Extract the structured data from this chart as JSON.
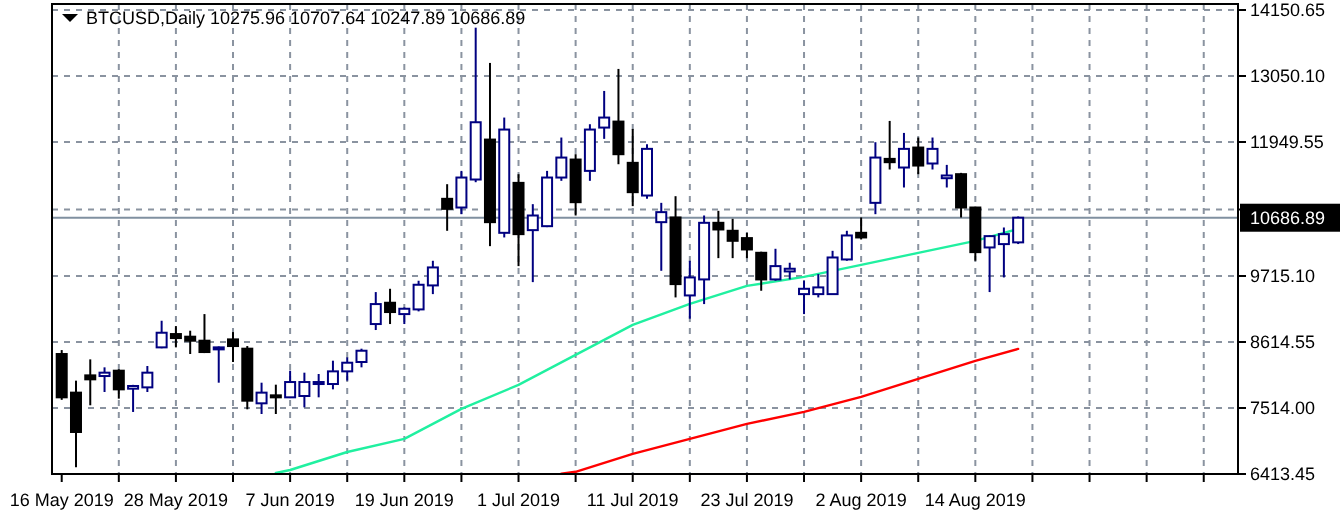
{
  "chart_data": {
    "type": "candlestick",
    "title": "BTCUSD,Daily 10275.96 10707.64 10247.89 10686.89",
    "categories": [
      "16 May 2019",
      null,
      null,
      null,
      null,
      null,
      null,
      null,
      "28 May 2019",
      null,
      null,
      null,
      null,
      null,
      null,
      null,
      "7 Jun 2019",
      null,
      null,
      null,
      null,
      null,
      null,
      null,
      "19 Jun 2019",
      null,
      null,
      null,
      null,
      null,
      null,
      null,
      "1 Jul 2019",
      null,
      null,
      null,
      null,
      null,
      null,
      null,
      "11 Jul 2019",
      null,
      null,
      null,
      null,
      null,
      null,
      null,
      "23 Jul 2019",
      null,
      null,
      null,
      null,
      null,
      null,
      null,
      "2 Aug 2019",
      null,
      null,
      null,
      null,
      null,
      null,
      null,
      "14 Aug 2019",
      null,
      null,
      null,
      null,
      null,
      null,
      null,
      null,
      null,
      null,
      null,
      null,
      null,
      null,
      null,
      null,
      null,
      null
    ],
    "ohlc": [
      [
        8414,
        8480,
        7650,
        7692
      ],
      [
        7770,
        7970,
        6526,
        7114
      ],
      [
        8058,
        8325,
        7559,
        7992
      ],
      [
        8047,
        8192,
        7781,
        8103
      ],
      [
        8136,
        8160,
        7670,
        7825
      ],
      [
        7836,
        7900,
        7448,
        7881
      ],
      [
        7858,
        8214,
        7781,
        8103
      ],
      [
        8525,
        8969,
        8510,
        8769
      ],
      [
        8747,
        8880,
        8525,
        8680
      ],
      [
        8703,
        8803,
        8414,
        8636
      ],
      [
        8636,
        9080,
        8430,
        8447
      ],
      [
        8492,
        8540,
        7936,
        8525
      ],
      [
        8658,
        8780,
        8281,
        8547
      ],
      [
        8503,
        8547,
        7492,
        7636
      ],
      [
        7592,
        7936,
        7414,
        7770
      ],
      [
        7725,
        7903,
        7414,
        7692
      ],
      [
        7692,
        8136,
        7680,
        7947
      ],
      [
        7714,
        8103,
        7525,
        7947
      ],
      [
        7914,
        8081,
        7692,
        7947
      ],
      [
        7914,
        8303,
        7825,
        8125
      ],
      [
        8125,
        8358,
        7970,
        8269
      ],
      [
        8281,
        8503,
        8192,
        8469
      ],
      [
        8914,
        9447,
        8814,
        9247
      ],
      [
        9269,
        9502,
        8914,
        9114
      ],
      [
        9080,
        9191,
        8914,
        9169
      ],
      [
        9158,
        9636,
        9125,
        9569
      ],
      [
        9558,
        9969,
        9413,
        9858
      ],
      [
        11002,
        11246,
        10469,
        10835
      ],
      [
        10857,
        11468,
        10746,
        11357
      ],
      [
        11324,
        13856,
        11279,
        12279
      ],
      [
        11990,
        13268,
        10213,
        10613
      ],
      [
        10435,
        12357,
        10358,
        12157
      ],
      [
        11268,
        11413,
        9880,
        10413
      ],
      [
        10480,
        10913,
        9613,
        10724
      ],
      [
        10546,
        11468,
        10530,
        11357
      ],
      [
        11357,
        12024,
        11302,
        11690
      ],
      [
        11657,
        11746,
        10724,
        10946
      ],
      [
        11468,
        12246,
        11302,
        12157
      ],
      [
        12190,
        12801,
        12002,
        12357
      ],
      [
        12290,
        13168,
        11579,
        11746
      ],
      [
        11602,
        12168,
        10880,
        11113
      ],
      [
        11057,
        11913,
        11002,
        11835
      ],
      [
        10613,
        10935,
        9802,
        10780
      ],
      [
        10691,
        11046,
        9358,
        9580
      ],
      [
        9391,
        9969,
        9003,
        9691
      ],
      [
        9658,
        10724,
        9247,
        10602
      ],
      [
        10602,
        10802,
        10013,
        10491
      ],
      [
        10469,
        10669,
        10013,
        10302
      ],
      [
        10347,
        10435,
        10013,
        10158
      ],
      [
        10102,
        10120,
        9469,
        9658
      ],
      [
        9658,
        10169,
        9636,
        9880
      ],
      [
        9791,
        9936,
        9658,
        9836
      ],
      [
        9413,
        9636,
        9080,
        9502
      ],
      [
        9413,
        9747,
        9358,
        9525
      ],
      [
        9413,
        10135,
        9400,
        10024
      ],
      [
        9991,
        10469,
        9969,
        10391
      ],
      [
        10435,
        10691,
        10324,
        10358
      ],
      [
        10935,
        11946,
        10746,
        11690
      ],
      [
        11668,
        12301,
        11491,
        11613
      ],
      [
        11524,
        12101,
        11191,
        11835
      ],
      [
        11857,
        12024,
        11413,
        11557
      ],
      [
        11591,
        12024,
        11491,
        11835
      ],
      [
        11346,
        11568,
        11191,
        11391
      ],
      [
        11413,
        11435,
        10691,
        10857
      ],
      [
        10857,
        10870,
        9969,
        10113
      ],
      [
        10191,
        10390,
        9447,
        10380
      ],
      [
        10247,
        10524,
        9691,
        10413
      ],
      [
        10275.96,
        10707.64,
        10247.89,
        10686.89
      ],
      null,
      null,
      null,
      null,
      null,
      null,
      null,
      null,
      null,
      null,
      null,
      null,
      null,
      null,
      null
    ],
    "colors": [
      "#000000",
      "#000000",
      "#000000",
      "#000080",
      "#000000",
      "#000080",
      "#000080",
      "#000080",
      "#000000",
      "#000000",
      "#000000",
      "#000080",
      "#000000",
      "#000000",
      "#000080",
      "#000000",
      "#000080",
      "#000080",
      "#000080",
      "#000080",
      "#000080",
      "#000080",
      "#000080",
      "#000000",
      "#000080",
      "#000080",
      "#000080",
      "#000000",
      "#000080",
      "#000080",
      "#000000",
      "#000080",
      "#000000",
      "#000080",
      "#000080",
      "#000080",
      "#000000",
      "#000080",
      "#000080",
      "#000000",
      "#000000",
      "#000080",
      "#000080",
      "#000000",
      "#000080",
      "#000080",
      "#000000",
      "#000000",
      "#000000",
      "#000000",
      "#000080",
      "#000080",
      "#000080",
      "#000080",
      "#000080",
      "#000080",
      "#000000",
      "#000080",
      "#000000",
      "#000080",
      "#000000",
      "#000080",
      "#000080",
      "#000000",
      "#000000",
      "#000080",
      "#000080",
      "#000080",
      null,
      null,
      null,
      null,
      null,
      null,
      null,
      null,
      null,
      null,
      null,
      null,
      null,
      null,
      null
    ],
    "series": [
      {
        "type": "line",
        "color": "#20f0a0",
        "values": [
          null,
          null,
          null,
          null,
          null,
          null,
          null,
          null,
          null,
          null,
          null,
          null,
          null,
          null,
          null,
          6430,
          6480,
          null,
          null,
          null,
          6780,
          null,
          null,
          null,
          7000,
          null,
          null,
          null,
          7500,
          null,
          null,
          null,
          7900,
          null,
          null,
          null,
          8400,
          null,
          null,
          null,
          8900,
          null,
          null,
          null,
          9250,
          null,
          null,
          null,
          9550,
          null,
          null,
          null,
          9700,
          null,
          null,
          null,
          9900,
          null,
          null,
          null,
          10100,
          null,
          null,
          null,
          10300,
          null,
          null,
          10500,
          null,
          null,
          null,
          null,
          null,
          null,
          null,
          null,
          null,
          null,
          null,
          null,
          null,
          null,
          null
        ]
      },
      {
        "type": "line",
        "color": "#ff0000",
        "values": [
          null,
          null,
          null,
          null,
          null,
          null,
          null,
          null,
          null,
          null,
          null,
          null,
          null,
          null,
          null,
          null,
          null,
          null,
          null,
          null,
          null,
          null,
          null,
          null,
          null,
          null,
          null,
          null,
          null,
          null,
          null,
          null,
          null,
          null,
          null,
          6420,
          6450,
          null,
          null,
          null,
          6750,
          null,
          null,
          null,
          7000,
          null,
          null,
          null,
          7250,
          null,
          null,
          null,
          7450,
          null,
          null,
          null,
          7700,
          null,
          null,
          null,
          8000,
          null,
          null,
          null,
          8300,
          null,
          null,
          8500,
          null,
          null,
          null,
          null,
          null,
          null,
          null,
          null,
          null,
          null,
          null,
          null,
          null,
          null,
          null
        ]
      }
    ],
    "ylim": [
      6413.45,
      14150.65
    ],
    "yticks": [
      14150.65,
      {
        "value": 13050.1,
        "label": "13050.10"
      },
      11949.55,
      {
        "value": 10824,
        "label": null
      },
      {
        "value": 9715.1,
        "label": "9715.10"
      },
      8614.55,
      {
        "value": 7514,
        "label": "7514.00"
      },
      6413.45
    ],
    "ref_lines": [
      {
        "axis": "y",
        "value": 10686.89,
        "label": "10686.89",
        "color": "#8090a0"
      }
    ],
    "grid": true
  }
}
